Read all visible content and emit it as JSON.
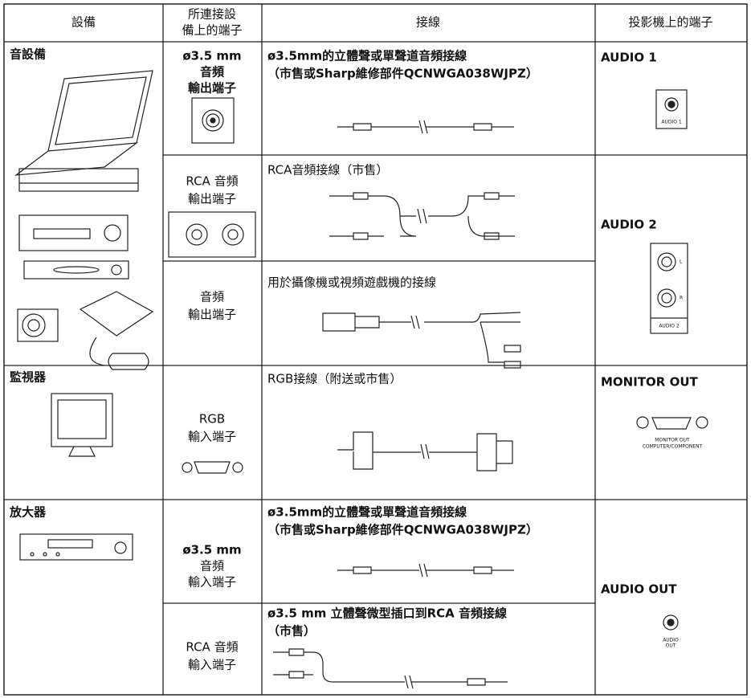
{
  "header": {
    "device": "設備",
    "port": [
      "所連接設",
      "備上的端子"
    ],
    "cable": "接線",
    "projector": "投影機上的端子"
  },
  "groups": [
    {
      "device": "音設備",
      "connections": [
        {
          "port": [
            "ø3.5 mm",
            "音頻",
            "輸出端子"
          ],
          "cable": [
            "ø3.5mm的立體聲或單聲道音頻接線",
            "（市售或Sharp維修部件QCNWGA038WJPZ）"
          ]
        },
        {
          "port": [
            "RCA 音頻",
            "輸出端子"
          ],
          "cable": [
            "RCA音頻接線（市售）"
          ]
        },
        {
          "port": [
            "音頻",
            "輸出端子"
          ],
          "cable": [
            "用於攝像機或視頻遊戲機的接線"
          ]
        }
      ]
    },
    {
      "device": "監視器",
      "connections": [
        {
          "port": [
            "RGB",
            "輸入端子"
          ],
          "cable": [
            "RGB接線（附送或市售）"
          ]
        }
      ]
    },
    {
      "device": "放大器",
      "connections": [
        {
          "port": [
            "ø3.5 mm",
            "音頻",
            "輸入端子"
          ],
          "cable": [
            "ø3.5mm的立體聲或單聲道音頻接線",
            "（市售或Sharp維修部件QCNWGA038WJPZ）"
          ]
        },
        {
          "port": [
            "RCA 音頻",
            "輸入端子"
          ],
          "cable": [
            "ø3.5 mm 立體聲微型插口到RCA 音頻接線",
            "（市售）"
          ]
        }
      ]
    }
  ],
  "projector_ports": [
    {
      "title": "AUDIO 1",
      "labels": [
        "AUDIO 1"
      ]
    },
    {
      "title": "AUDIO 2",
      "labels": [
        "L",
        "R",
        "AUDIO 2"
      ]
    },
    {
      "title": "MONITOR OUT",
      "labels": [
        "MONITOR OUT",
        "COMPUTER/COMPONENT"
      ]
    },
    {
      "title": "AUDIO OUT",
      "labels": [
        "AUDIO",
        "OUT"
      ]
    }
  ]
}
